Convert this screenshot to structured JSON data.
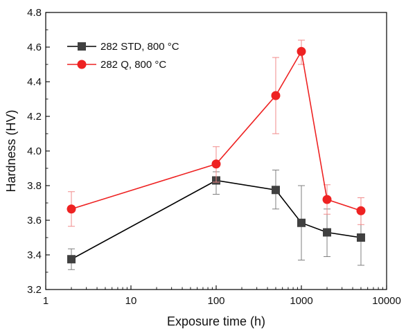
{
  "chart_data": {
    "type": "line",
    "xlabel": "Exposure time (h)",
    "ylabel": "Hardness (HV)",
    "x_scale": "log",
    "xlim": [
      1,
      10000
    ],
    "ylim": [
      3.2,
      4.8
    ],
    "x_ticks": [
      1,
      10,
      100,
      1000,
      10000
    ],
    "x_tick_labels": [
      "1",
      "10",
      "100",
      "1000",
      "10000"
    ],
    "y_ticks": [
      3.2,
      3.4,
      3.6,
      3.8,
      4.0,
      4.2,
      4.4,
      4.6,
      4.8
    ],
    "y_tick_labels": [
      "3.2",
      "3.4",
      "3.6",
      "3.8",
      "4.0",
      "4.2",
      "4.4",
      "4.6",
      "4.8"
    ],
    "grid": false,
    "legend_position": "top-left",
    "series": [
      {
        "name": "282 STD, 800 °C",
        "color": "#000000",
        "marker_color": "#404040",
        "marker": "square",
        "x": [
          2,
          100,
          500,
          1000,
          2000,
          5000
        ],
        "y": [
          3.375,
          3.83,
          3.775,
          3.585,
          3.53,
          3.5
        ],
        "err_low": [
          3.315,
          3.75,
          3.665,
          3.37,
          3.39,
          3.34
        ],
        "err_high": [
          3.435,
          3.88,
          3.89,
          3.8,
          3.665,
          3.66
        ]
      },
      {
        "name": "282 Q, 800 °C",
        "color": "#ee2222",
        "marker_color": "#ee2222",
        "marker": "circle",
        "x": [
          2,
          100,
          500,
          1000,
          2000,
          5000
        ],
        "y": [
          3.665,
          3.925,
          4.32,
          4.575,
          3.72,
          3.655
        ],
        "err_low": [
          3.565,
          3.82,
          4.1,
          4.5,
          3.635,
          3.575
        ],
        "err_high": [
          3.765,
          4.025,
          4.54,
          4.64,
          3.805,
          3.73
        ]
      }
    ]
  }
}
